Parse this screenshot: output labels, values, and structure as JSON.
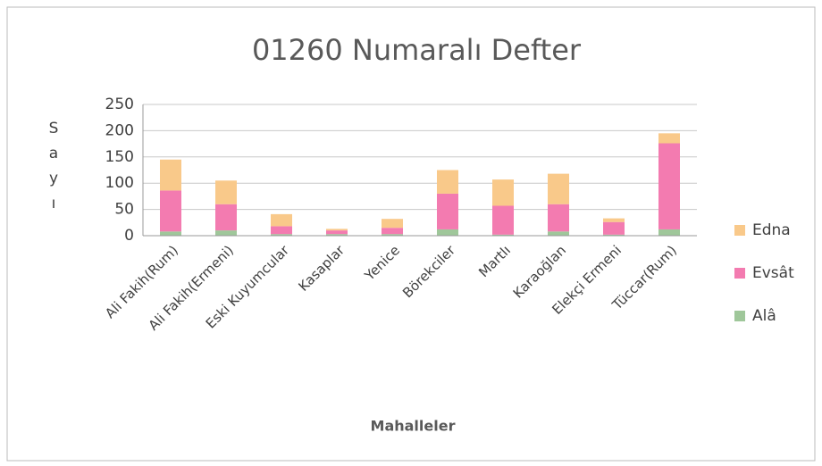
{
  "chart_data": {
    "type": "stacked_bar",
    "title": "01260 Numaralı Defter",
    "x_label": "Mahalleler",
    "y_label": "Sayı",
    "categories": [
      "Ali Fakih(Rum)",
      "Ali Fakih(Ermeni)",
      "Eski Kuyumcular",
      "Kasaplar",
      "Yenice",
      "Börekciler",
      "Martlı",
      "Karaoğlan",
      "Elekçi Ermeni",
      "Tüccar(Rum)"
    ],
    "series": [
      {
        "name": "Alâ",
        "color": "#9fc79a",
        "values": [
          8,
          10,
          3,
          3,
          3,
          12,
          2,
          8,
          2,
          12
        ]
      },
      {
        "name": "Evsât",
        "color": "#f37bb0",
        "values": [
          78,
          50,
          15,
          7,
          12,
          68,
          55,
          52,
          24,
          164
        ]
      },
      {
        "name": "Edna",
        "color": "#f9c98a",
        "values": [
          59,
          45,
          23,
          3,
          17,
          45,
          50,
          58,
          7,
          19
        ]
      }
    ],
    "ylim": [
      0,
      250
    ],
    "yticks": [
      0,
      50,
      100,
      150,
      200,
      250
    ],
    "grid": true,
    "legend": "right"
  }
}
